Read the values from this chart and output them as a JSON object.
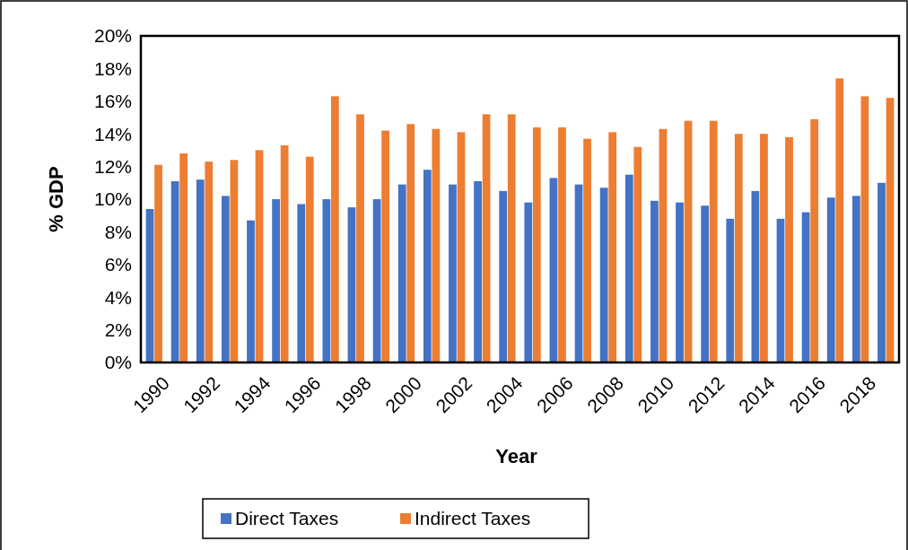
{
  "chart_data": {
    "type": "bar",
    "xlabel": "Year",
    "ylabel": "% GDP",
    "categories": [
      "1990",
      null,
      "1992",
      null,
      "1994",
      null,
      "1996",
      null,
      "1998",
      null,
      "2000",
      null,
      "2002",
      null,
      "2004",
      null,
      "2006",
      null,
      "2008",
      null,
      "2010",
      null,
      "2012",
      null,
      "2014",
      null,
      "2016",
      null,
      "2018",
      null
    ],
    "series": [
      {
        "name": "Direct Taxes",
        "color": "#4472c4",
        "values": [
          9.4,
          11.1,
          11.2,
          10.2,
          8.7,
          10.0,
          9.7,
          10.0,
          9.5,
          10.0,
          10.9,
          11.8,
          10.9,
          11.1,
          10.5,
          9.8,
          11.3,
          10.9,
          10.7,
          11.5,
          9.9,
          9.8,
          9.6,
          8.8,
          10.5,
          8.8,
          9.2,
          10.1,
          10.2,
          11.0
        ]
      },
      {
        "name": "Indirect Taxes",
        "color": "#ed7d31",
        "values": [
          12.1,
          12.8,
          12.3,
          12.4,
          13.0,
          13.3,
          12.6,
          16.3,
          15.2,
          14.2,
          14.6,
          14.3,
          14.1,
          15.2,
          15.2,
          14.4,
          14.4,
          13.7,
          14.1,
          13.2,
          14.3,
          14.8,
          14.8,
          14.0,
          14.0,
          13.8,
          14.9,
          17.4,
          16.3,
          16.2
        ]
      }
    ],
    "ylim": [
      0,
      20
    ],
    "yticks": [
      {
        "value": 0,
        "label": "0%"
      },
      {
        "value": 2,
        "label": "2%"
      },
      {
        "value": 4,
        "label": "4%"
      },
      {
        "value": 6,
        "label": "6%"
      },
      {
        "value": 8,
        "label": "8%"
      },
      {
        "value": 10,
        "label": "10%"
      },
      {
        "value": 12,
        "label": "12%"
      },
      {
        "value": 14,
        "label": "14%"
      },
      {
        "value": 16,
        "label": "16%"
      },
      {
        "value": 18,
        "label": "18%"
      },
      {
        "value": 20,
        "label": "20%"
      }
    ],
    "legend": "bottom",
    "grid": false
  }
}
